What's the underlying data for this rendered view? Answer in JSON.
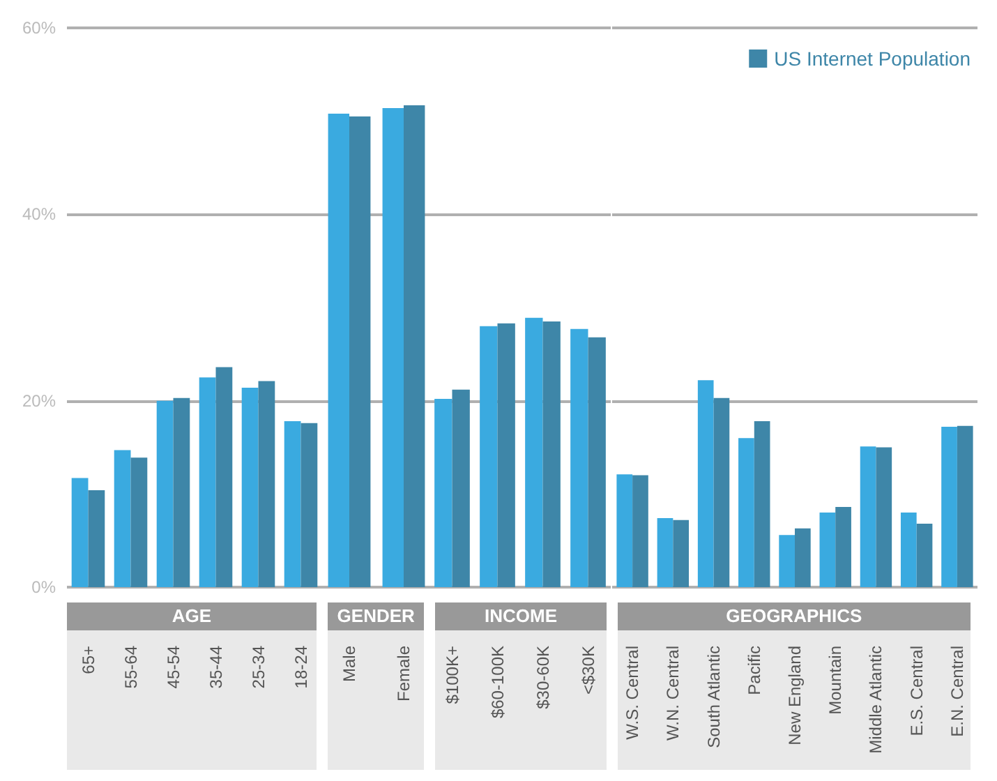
{
  "chart_data": [
    {
      "type": "bar",
      "title": "AGE",
      "categories": [
        "65+",
        "55-64",
        "45-54",
        "35-44",
        "25-34",
        "18-24"
      ],
      "series": [
        {
          "color": "#3aaae0",
          "values": [
            11.7,
            14.7,
            20.0,
            22.5,
            21.4,
            17.8
          ]
        },
        {
          "color": "#3e86a8",
          "values": [
            10.4,
            13.9,
            20.3,
            23.6,
            22.1,
            17.6
          ]
        }
      ],
      "ylim": [
        0,
        60
      ],
      "yticks": [
        {
          "value": 0,
          "label": "0%"
        },
        {
          "value": 20,
          "label": "20%"
        },
        {
          "value": 40,
          "label": "40%"
        },
        {
          "value": 60,
          "label": "60%"
        }
      ],
      "grid": "y"
    },
    {
      "type": "bar",
      "title": "GENDER",
      "categories": [
        "Male",
        "Female"
      ],
      "series": [
        {
          "color": "#3aaae0",
          "values": [
            50.8,
            51.4
          ]
        },
        {
          "color": "#3e86a8",
          "values": [
            50.5,
            51.7
          ]
        }
      ],
      "ylim": [
        0,
        60
      ],
      "yticks": [
        0,
        20,
        40,
        60
      ],
      "grid": "y",
      "tick_labels": "x"
    },
    {
      "type": "bar",
      "title": "INCOME",
      "categories": [
        "$100K+",
        "$60-100K",
        "$30-60K",
        "<$30K"
      ],
      "series": [
        {
          "color": "#3aaae0",
          "values": [
            20.2,
            28.0,
            28.9,
            27.7
          ]
        },
        {
          "color": "#3e86a8",
          "values": [
            21.2,
            28.3,
            28.5,
            26.8
          ]
        }
      ],
      "ylim": [
        0,
        60
      ],
      "yticks": [
        0,
        20,
        40,
        60
      ],
      "grid": "y",
      "tick_labels": "x"
    },
    {
      "type": "bar",
      "title": "GEOGRAPHICS",
      "categories": [
        "W.S. Central",
        "W.N. Central",
        "South Atlantic",
        "Pacific",
        "New England",
        "Mountain",
        "Middle Atlantic",
        "E.S. Central",
        "E.N. Central"
      ],
      "series": [
        {
          "color": "#3aaae0",
          "values": [
            12.1,
            7.4,
            22.2,
            16.0,
            5.6,
            8.0,
            15.1,
            8.0,
            17.2
          ]
        },
        {
          "name": "US Internet Population",
          "color": "#3e86a8",
          "values": [
            12.0,
            7.2,
            20.3,
            17.8,
            6.3,
            8.6,
            15.0,
            6.8,
            17.3
          ]
        }
      ],
      "ylim": [
        0,
        60
      ],
      "yticks": [
        0,
        20,
        40,
        60
      ],
      "grid": "y",
      "tick_labels": "x",
      "legend": "top right"
    }
  ]
}
